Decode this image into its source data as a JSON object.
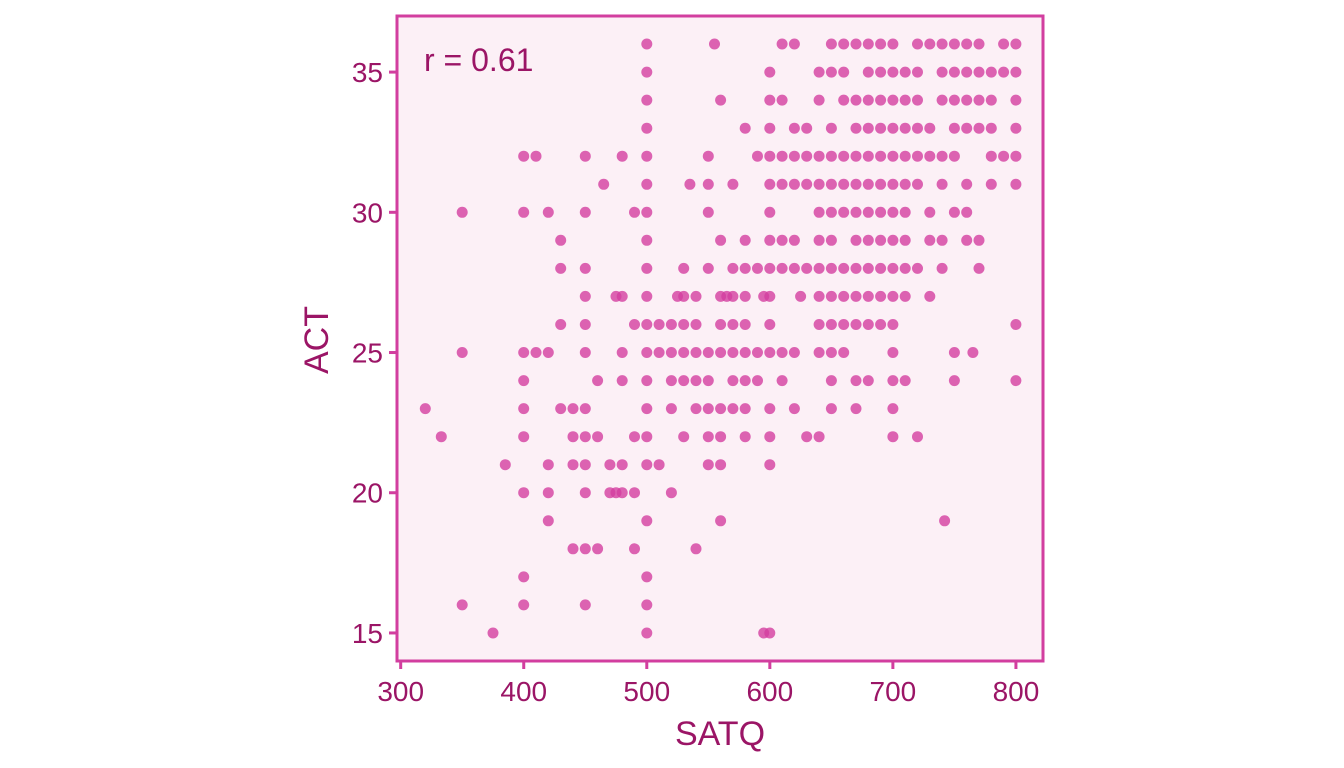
{
  "chart_data": {
    "type": "scatter",
    "xlabel": "SATQ",
    "ylabel": "ACT",
    "annotation": "r = 0.61",
    "xlim": [
      297,
      822
    ],
    "ylim": [
      14,
      37
    ],
    "xticks": [
      300,
      400,
      500,
      600,
      700,
      800
    ],
    "yticks": [
      15,
      20,
      25,
      30,
      35
    ],
    "grid": false,
    "colors": {
      "point": "#d33fa0",
      "panel_bg": "#fcf0f6",
      "border": "#d23e9f",
      "text": "#9b1566"
    },
    "points": [
      [
        500,
        36
      ],
      [
        555,
        36
      ],
      [
        610,
        36
      ],
      [
        620,
        36
      ],
      [
        650,
        36
      ],
      [
        660,
        36
      ],
      [
        670,
        36
      ],
      [
        680,
        36
      ],
      [
        690,
        36
      ],
      [
        700,
        36
      ],
      [
        720,
        36
      ],
      [
        730,
        36
      ],
      [
        740,
        36
      ],
      [
        750,
        36
      ],
      [
        760,
        36
      ],
      [
        770,
        36
      ],
      [
        790,
        36
      ],
      [
        800,
        36
      ],
      [
        500,
        35
      ],
      [
        600,
        35
      ],
      [
        640,
        35
      ],
      [
        650,
        35
      ],
      [
        660,
        35
      ],
      [
        680,
        35
      ],
      [
        690,
        35
      ],
      [
        700,
        35
      ],
      [
        710,
        35
      ],
      [
        720,
        35
      ],
      [
        740,
        35
      ],
      [
        750,
        35
      ],
      [
        760,
        35
      ],
      [
        770,
        35
      ],
      [
        780,
        35
      ],
      [
        790,
        35
      ],
      [
        800,
        35
      ],
      [
        500,
        34
      ],
      [
        560,
        34
      ],
      [
        600,
        34
      ],
      [
        610,
        34
      ],
      [
        640,
        34
      ],
      [
        660,
        34
      ],
      [
        670,
        34
      ],
      [
        680,
        34
      ],
      [
        690,
        34
      ],
      [
        700,
        34
      ],
      [
        710,
        34
      ],
      [
        720,
        34
      ],
      [
        740,
        34
      ],
      [
        750,
        34
      ],
      [
        760,
        34
      ],
      [
        770,
        34
      ],
      [
        780,
        34
      ],
      [
        800,
        34
      ],
      [
        500,
        33
      ],
      [
        580,
        33
      ],
      [
        600,
        33
      ],
      [
        620,
        33
      ],
      [
        630,
        33
      ],
      [
        650,
        33
      ],
      [
        670,
        33
      ],
      [
        680,
        33
      ],
      [
        690,
        33
      ],
      [
        700,
        33
      ],
      [
        710,
        33
      ],
      [
        720,
        33
      ],
      [
        730,
        33
      ],
      [
        750,
        33
      ],
      [
        760,
        33
      ],
      [
        770,
        33
      ],
      [
        780,
        33
      ],
      [
        800,
        33
      ],
      [
        400,
        32
      ],
      [
        410,
        32
      ],
      [
        450,
        32
      ],
      [
        480,
        32
      ],
      [
        500,
        32
      ],
      [
        550,
        32
      ],
      [
        590,
        32
      ],
      [
        600,
        32
      ],
      [
        610,
        32
      ],
      [
        620,
        32
      ],
      [
        630,
        32
      ],
      [
        640,
        32
      ],
      [
        650,
        32
      ],
      [
        660,
        32
      ],
      [
        670,
        32
      ],
      [
        680,
        32
      ],
      [
        690,
        32
      ],
      [
        700,
        32
      ],
      [
        710,
        32
      ],
      [
        720,
        32
      ],
      [
        730,
        32
      ],
      [
        740,
        32
      ],
      [
        750,
        32
      ],
      [
        780,
        32
      ],
      [
        790,
        32
      ],
      [
        800,
        32
      ],
      [
        465,
        31
      ],
      [
        500,
        31
      ],
      [
        535,
        31
      ],
      [
        550,
        31
      ],
      [
        570,
        31
      ],
      [
        600,
        31
      ],
      [
        610,
        31
      ],
      [
        620,
        31
      ],
      [
        630,
        31
      ],
      [
        640,
        31
      ],
      [
        650,
        31
      ],
      [
        660,
        31
      ],
      [
        670,
        31
      ],
      [
        680,
        31
      ],
      [
        690,
        31
      ],
      [
        700,
        31
      ],
      [
        710,
        31
      ],
      [
        720,
        31
      ],
      [
        740,
        31
      ],
      [
        760,
        31
      ],
      [
        780,
        31
      ],
      [
        800,
        31
      ],
      [
        350,
        30
      ],
      [
        400,
        30
      ],
      [
        420,
        30
      ],
      [
        450,
        30
      ],
      [
        490,
        30
      ],
      [
        500,
        30
      ],
      [
        550,
        30
      ],
      [
        600,
        30
      ],
      [
        640,
        30
      ],
      [
        650,
        30
      ],
      [
        660,
        30
      ],
      [
        670,
        30
      ],
      [
        680,
        30
      ],
      [
        690,
        30
      ],
      [
        700,
        30
      ],
      [
        710,
        30
      ],
      [
        730,
        30
      ],
      [
        750,
        30
      ],
      [
        760,
        30
      ],
      [
        430,
        29
      ],
      [
        500,
        29
      ],
      [
        560,
        29
      ],
      [
        580,
        29
      ],
      [
        600,
        29
      ],
      [
        610,
        29
      ],
      [
        620,
        29
      ],
      [
        640,
        29
      ],
      [
        650,
        29
      ],
      [
        670,
        29
      ],
      [
        680,
        29
      ],
      [
        690,
        29
      ],
      [
        700,
        29
      ],
      [
        710,
        29
      ],
      [
        730,
        29
      ],
      [
        740,
        29
      ],
      [
        760,
        29
      ],
      [
        770,
        29
      ],
      [
        430,
        28
      ],
      [
        450,
        28
      ],
      [
        500,
        28
      ],
      [
        530,
        28
      ],
      [
        550,
        28
      ],
      [
        570,
        28
      ],
      [
        580,
        28
      ],
      [
        590,
        28
      ],
      [
        600,
        28
      ],
      [
        610,
        28
      ],
      [
        620,
        28
      ],
      [
        630,
        28
      ],
      [
        640,
        28
      ],
      [
        650,
        28
      ],
      [
        660,
        28
      ],
      [
        670,
        28
      ],
      [
        680,
        28
      ],
      [
        690,
        28
      ],
      [
        700,
        28
      ],
      [
        710,
        28
      ],
      [
        720,
        28
      ],
      [
        740,
        28
      ],
      [
        770,
        28
      ],
      [
        450,
        27
      ],
      [
        475,
        27
      ],
      [
        480,
        27
      ],
      [
        500,
        27
      ],
      [
        525,
        27
      ],
      [
        530,
        27
      ],
      [
        540,
        27
      ],
      [
        560,
        27
      ],
      [
        565,
        27
      ],
      [
        570,
        27
      ],
      [
        580,
        27
      ],
      [
        595,
        27
      ],
      [
        600,
        27
      ],
      [
        625,
        27
      ],
      [
        640,
        27
      ],
      [
        650,
        27
      ],
      [
        660,
        27
      ],
      [
        670,
        27
      ],
      [
        680,
        27
      ],
      [
        690,
        27
      ],
      [
        700,
        27
      ],
      [
        710,
        27
      ],
      [
        730,
        27
      ],
      [
        430,
        26
      ],
      [
        450,
        26
      ],
      [
        490,
        26
      ],
      [
        500,
        26
      ],
      [
        510,
        26
      ],
      [
        520,
        26
      ],
      [
        530,
        26
      ],
      [
        540,
        26
      ],
      [
        560,
        26
      ],
      [
        570,
        26
      ],
      [
        580,
        26
      ],
      [
        600,
        26
      ],
      [
        640,
        26
      ],
      [
        650,
        26
      ],
      [
        660,
        26
      ],
      [
        670,
        26
      ],
      [
        680,
        26
      ],
      [
        690,
        26
      ],
      [
        700,
        26
      ],
      [
        800,
        26
      ],
      [
        350,
        25
      ],
      [
        400,
        25
      ],
      [
        410,
        25
      ],
      [
        420,
        25
      ],
      [
        450,
        25
      ],
      [
        480,
        25
      ],
      [
        500,
        25
      ],
      [
        510,
        25
      ],
      [
        520,
        25
      ],
      [
        530,
        25
      ],
      [
        540,
        25
      ],
      [
        550,
        25
      ],
      [
        560,
        25
      ],
      [
        570,
        25
      ],
      [
        580,
        25
      ],
      [
        590,
        25
      ],
      [
        600,
        25
      ],
      [
        610,
        25
      ],
      [
        620,
        25
      ],
      [
        640,
        25
      ],
      [
        650,
        25
      ],
      [
        660,
        25
      ],
      [
        700,
        25
      ],
      [
        750,
        25
      ],
      [
        765,
        25
      ],
      [
        400,
        24
      ],
      [
        460,
        24
      ],
      [
        480,
        24
      ],
      [
        500,
        24
      ],
      [
        520,
        24
      ],
      [
        530,
        24
      ],
      [
        540,
        24
      ],
      [
        550,
        24
      ],
      [
        570,
        24
      ],
      [
        580,
        24
      ],
      [
        590,
        24
      ],
      [
        610,
        24
      ],
      [
        650,
        24
      ],
      [
        670,
        24
      ],
      [
        680,
        24
      ],
      [
        700,
        24
      ],
      [
        710,
        24
      ],
      [
        750,
        24
      ],
      [
        800,
        24
      ],
      [
        320,
        23
      ],
      [
        400,
        23
      ],
      [
        430,
        23
      ],
      [
        440,
        23
      ],
      [
        450,
        23
      ],
      [
        500,
        23
      ],
      [
        520,
        23
      ],
      [
        540,
        23
      ],
      [
        550,
        23
      ],
      [
        560,
        23
      ],
      [
        570,
        23
      ],
      [
        580,
        23
      ],
      [
        600,
        23
      ],
      [
        620,
        23
      ],
      [
        650,
        23
      ],
      [
        670,
        23
      ],
      [
        700,
        23
      ],
      [
        333,
        22
      ],
      [
        400,
        22
      ],
      [
        440,
        22
      ],
      [
        450,
        22
      ],
      [
        460,
        22
      ],
      [
        490,
        22
      ],
      [
        500,
        22
      ],
      [
        530,
        22
      ],
      [
        550,
        22
      ],
      [
        560,
        22
      ],
      [
        580,
        22
      ],
      [
        600,
        22
      ],
      [
        630,
        22
      ],
      [
        640,
        22
      ],
      [
        700,
        22
      ],
      [
        720,
        22
      ],
      [
        385,
        21
      ],
      [
        420,
        21
      ],
      [
        440,
        21
      ],
      [
        450,
        21
      ],
      [
        470,
        21
      ],
      [
        480,
        21
      ],
      [
        500,
        21
      ],
      [
        510,
        21
      ],
      [
        550,
        21
      ],
      [
        560,
        21
      ],
      [
        600,
        21
      ],
      [
        400,
        20
      ],
      [
        420,
        20
      ],
      [
        450,
        20
      ],
      [
        470,
        20
      ],
      [
        475,
        20
      ],
      [
        480,
        20
      ],
      [
        490,
        20
      ],
      [
        520,
        20
      ],
      [
        420,
        19
      ],
      [
        500,
        19
      ],
      [
        560,
        19
      ],
      [
        742,
        19
      ],
      [
        440,
        18
      ],
      [
        450,
        18
      ],
      [
        460,
        18
      ],
      [
        490,
        18
      ],
      [
        540,
        18
      ],
      [
        400,
        17
      ],
      [
        500,
        17
      ],
      [
        350,
        16
      ],
      [
        400,
        16
      ],
      [
        450,
        16
      ],
      [
        500,
        16
      ],
      [
        375,
        15
      ],
      [
        500,
        15
      ],
      [
        595,
        15
      ],
      [
        600,
        15
      ]
    ]
  }
}
